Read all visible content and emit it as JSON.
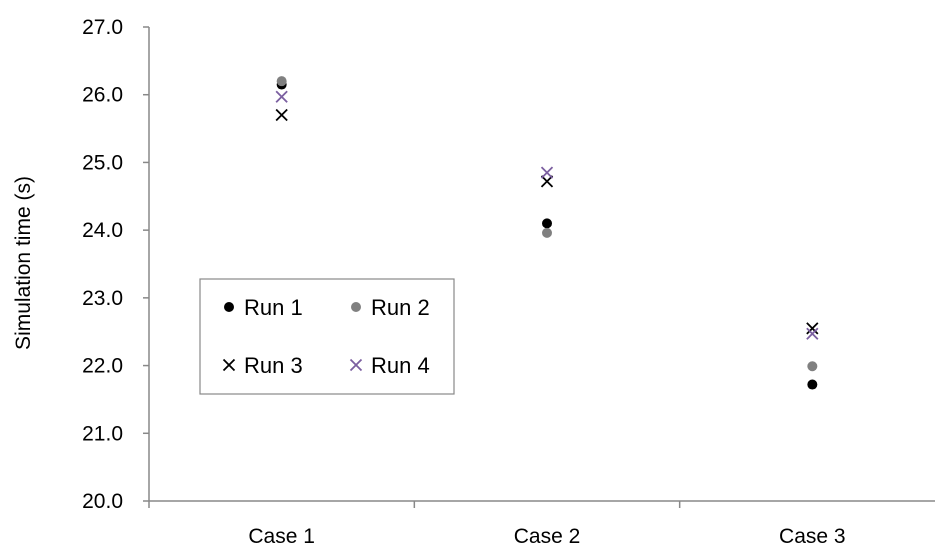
{
  "chart_data": {
    "type": "scatter",
    "title": "",
    "xlabel": "",
    "ylabel": "Simulation time (s)",
    "categories": [
      "Case 1",
      "Case 2",
      "Case 3"
    ],
    "ylim": [
      20.0,
      27.0
    ],
    "yticks": [
      "20.0",
      "21.0",
      "22.0",
      "23.0",
      "24.0",
      "25.0",
      "26.0",
      "27.0"
    ],
    "grid": false,
    "legend_position": "left-center",
    "series": [
      {
        "name": "Run 1",
        "marker": "dot",
        "color": "#000000",
        "values": [
          26.15,
          24.1,
          21.72
        ]
      },
      {
        "name": "Run 2",
        "marker": "dot",
        "color": "#808080",
        "values": [
          26.2,
          23.96,
          21.99
        ]
      },
      {
        "name": "Run 3",
        "marker": "x",
        "color": "#000000",
        "values": [
          25.7,
          24.72,
          22.55
        ]
      },
      {
        "name": "Run 4",
        "marker": "x",
        "color": "#7B5FA0",
        "values": [
          25.97,
          24.85,
          22.47
        ]
      }
    ]
  }
}
